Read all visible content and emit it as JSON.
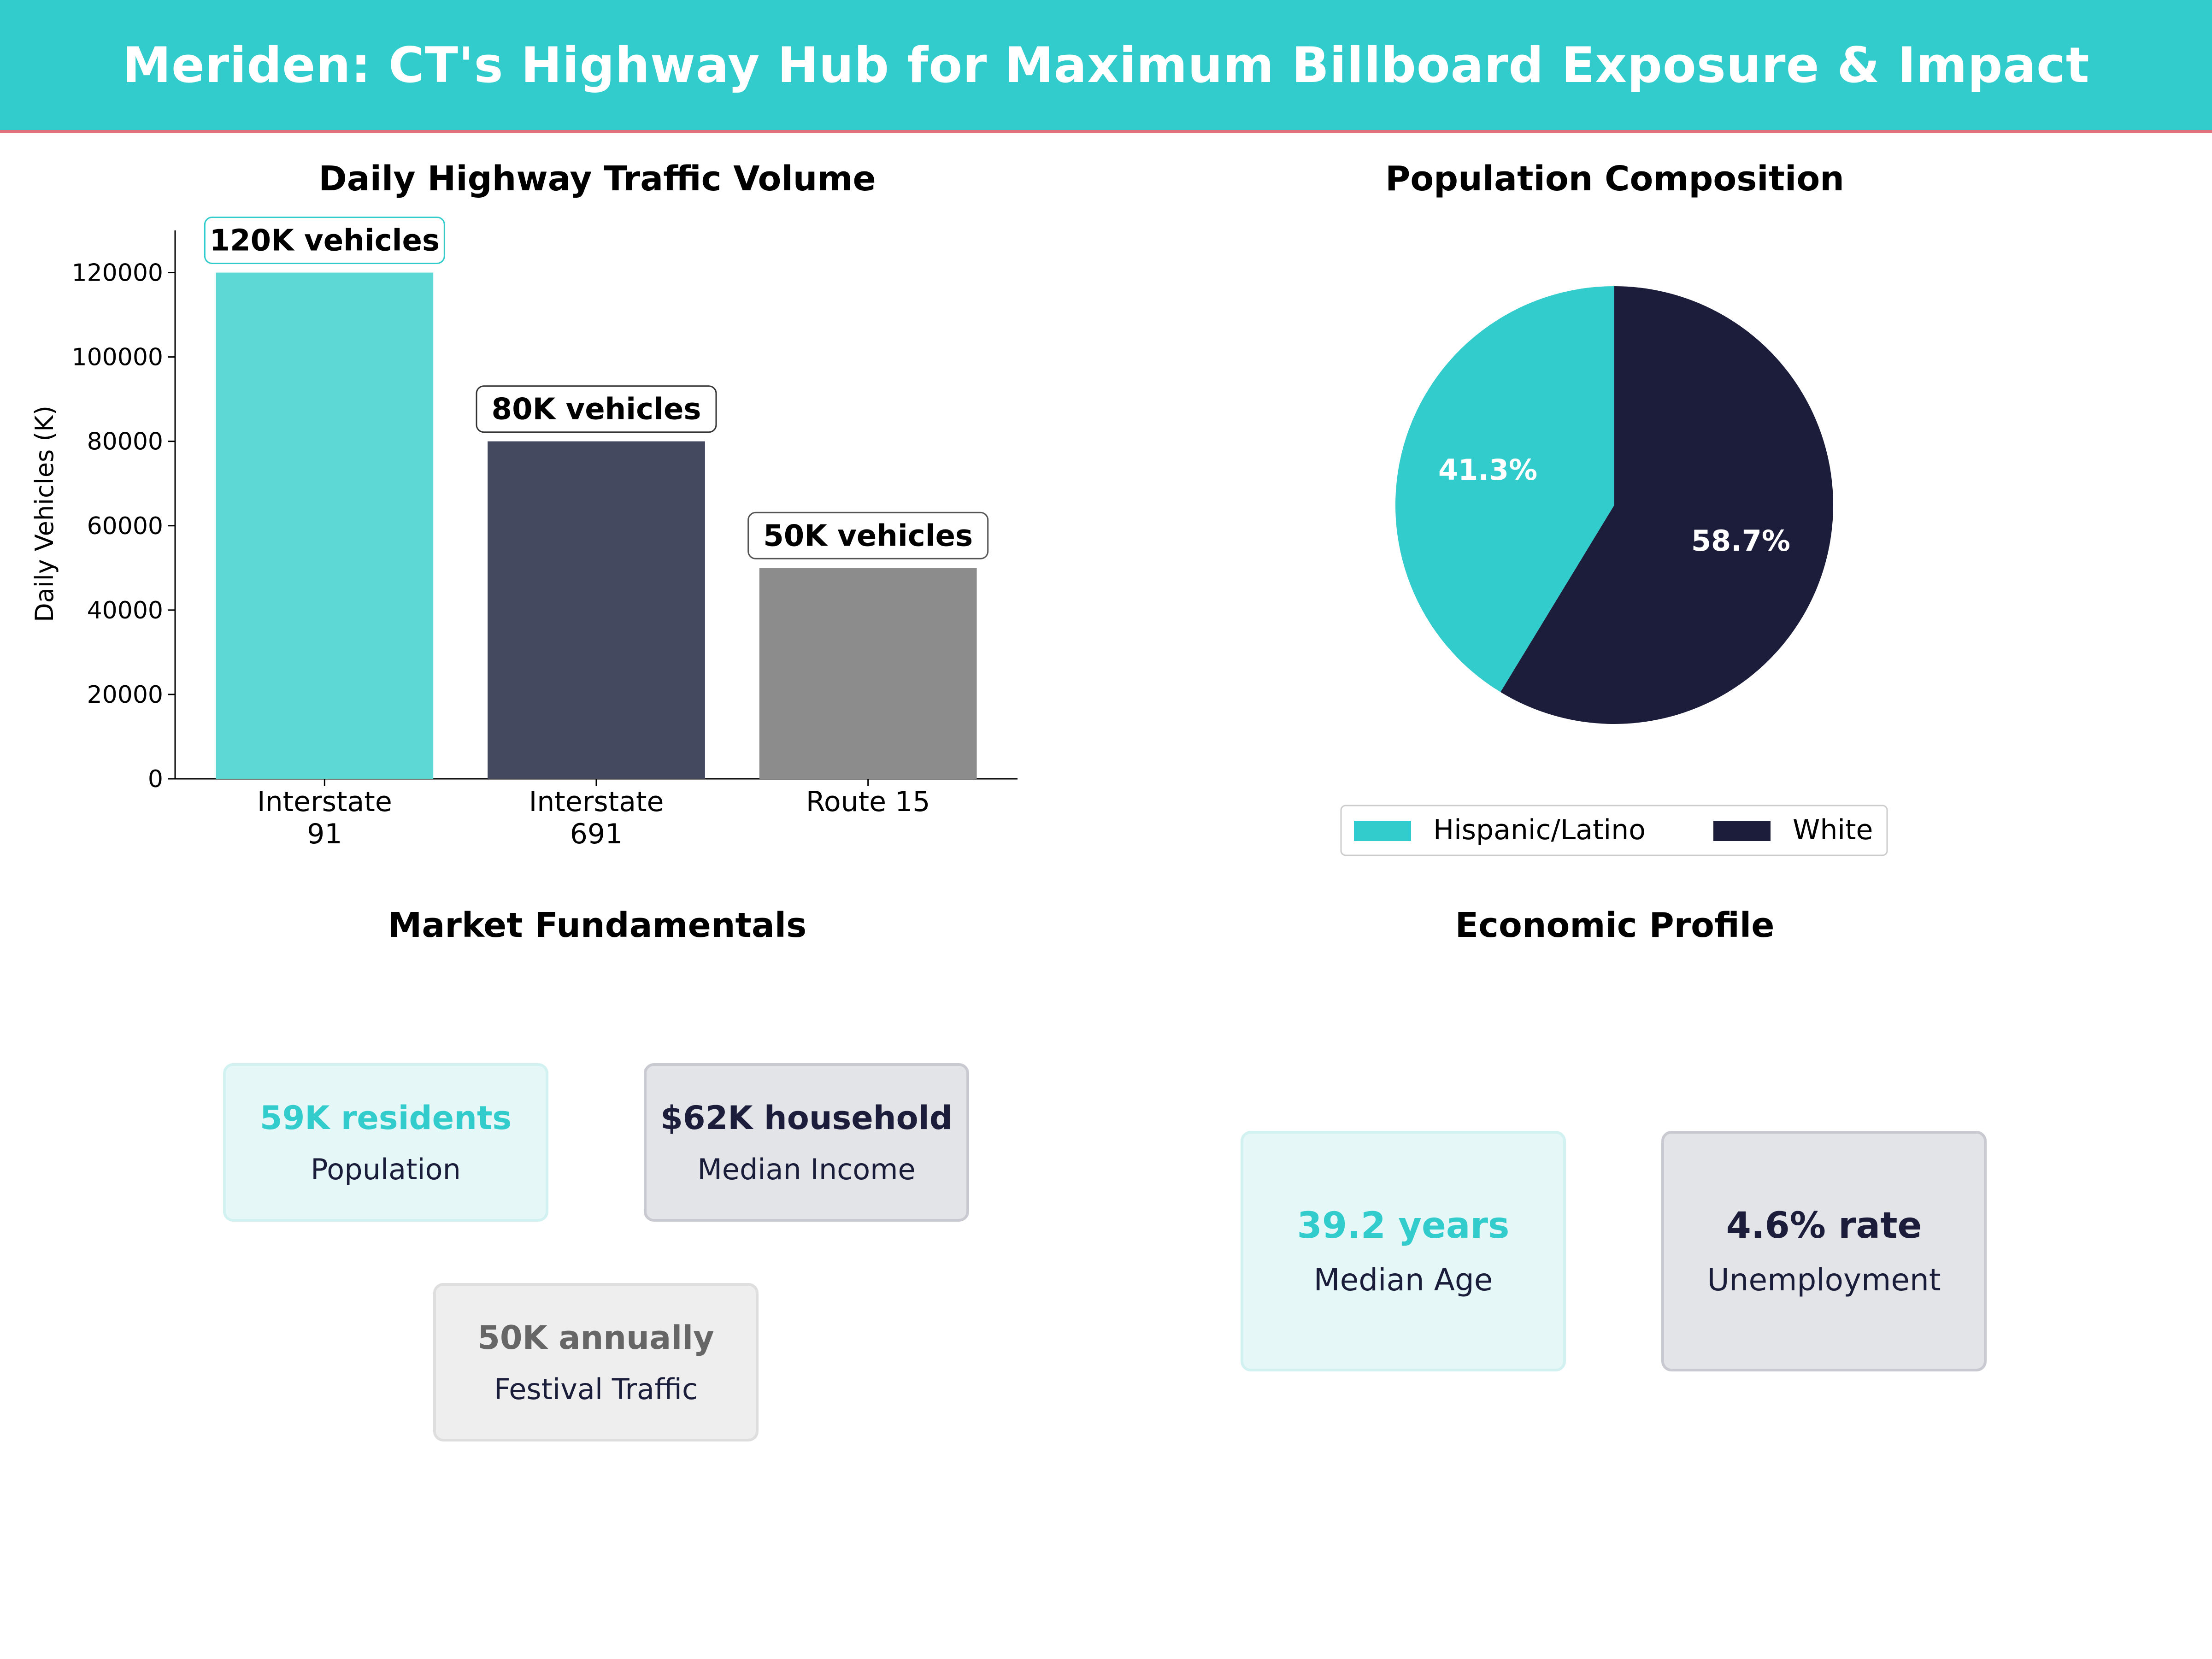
{
  "header": {
    "title": "Meriden: CT's Highway Hub for Maximum Billboard Exposure & Impact"
  },
  "colors": {
    "teal": "#33CCCC",
    "navy": "#1B1D3A",
    "gray": "#8C8C8C",
    "accent_line": "#E0707A"
  },
  "chart_data": [
    {
      "type": "bar",
      "title": "Daily Highway Traffic Volume",
      "ylabel": "Daily Vehicles (K)",
      "categories": [
        "Interstate\n91",
        "Interstate\n691",
        "Route 15"
      ],
      "values": [
        120000,
        80000,
        50000
      ],
      "data_labels": [
        "120K vehicles",
        "80K vehicles",
        "50K vehicles"
      ],
      "bar_colors": [
        "#5DD8D4",
        "#45495F",
        "#8C8C8C"
      ],
      "label_border_colors": [
        "#33CCCC",
        "#333333",
        "#555555"
      ],
      "ylim": [
        0,
        130000
      ],
      "yticks": [
        0,
        20000,
        40000,
        60000,
        80000,
        100000,
        120000
      ],
      "grid": false
    },
    {
      "type": "pie",
      "title": "Population Composition",
      "labels": [
        "Hispanic/Latino",
        "White"
      ],
      "values": [
        41.3,
        58.7
      ],
      "pct_labels": [
        "41.3%",
        "58.7%"
      ],
      "colors": [
        "#33CCCC",
        "#1B1D3A"
      ],
      "legend_position": "bottom"
    }
  ],
  "market": {
    "title": "Market Fundamentals",
    "cards": [
      {
        "value": "59K residents",
        "label": "Population",
        "color": "#33CCCC"
      },
      {
        "value": "$62K household",
        "label": "Median Income",
        "color": "#1B1D3A"
      },
      {
        "value": "50K annually",
        "label": "Festival Traffic",
        "color": "#666666"
      }
    ]
  },
  "economic": {
    "title": "Economic Profile",
    "cards": [
      {
        "value": "39.2 years",
        "label": "Median Age",
        "color": "#33CCCC"
      },
      {
        "value": "4.6% rate",
        "label": "Unemployment",
        "color": "#1B1D3A"
      }
    ]
  }
}
